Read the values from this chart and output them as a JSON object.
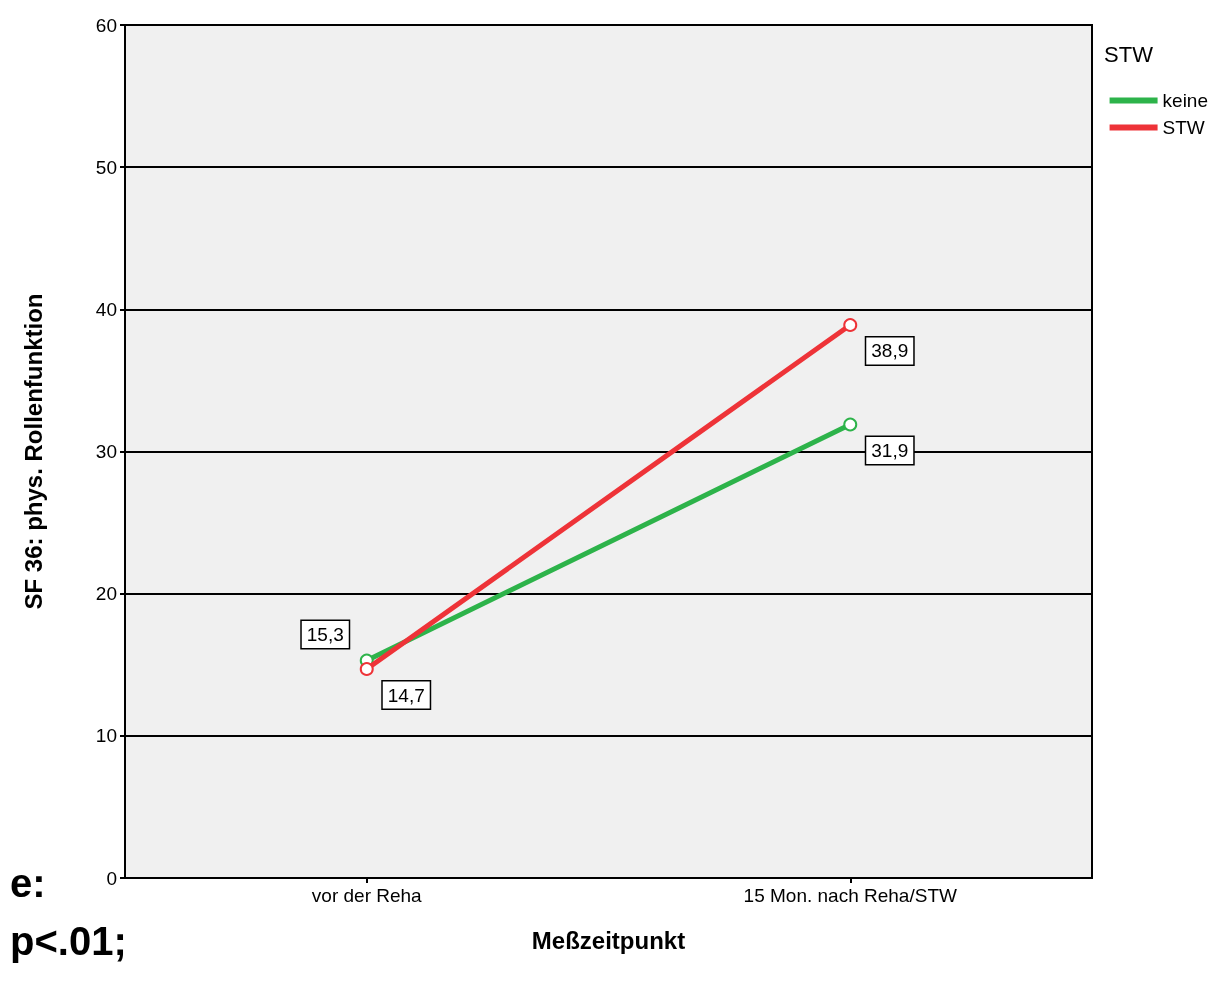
{
  "chart_data": {
    "type": "line",
    "categories": [
      "vor der Reha",
      "15 Mon. nach Reha/STW"
    ],
    "series": [
      {
        "name": "keine",
        "color": "#2db34a",
        "values": [
          15.3,
          31.9
        ],
        "value_labels": [
          "15,3",
          "31,9"
        ]
      },
      {
        "name": "STW",
        "color": "#ee3338",
        "values": [
          14.7,
          38.9
        ],
        "value_labels": [
          "14,7",
          "38,9"
        ]
      }
    ],
    "xlabel": "Meßzeitpunkt",
    "ylabel": "SF 36: phys. Rollenfunktion",
    "legend_title": "STW",
    "ylim": [
      0,
      60
    ],
    "yticks": [
      0,
      10,
      20,
      30,
      40,
      50,
      60
    ],
    "grid": "y",
    "legend": "top right",
    "marker": "circle",
    "line_style": "solid",
    "annotations": [
      "e:",
      "p<.01;"
    ]
  }
}
